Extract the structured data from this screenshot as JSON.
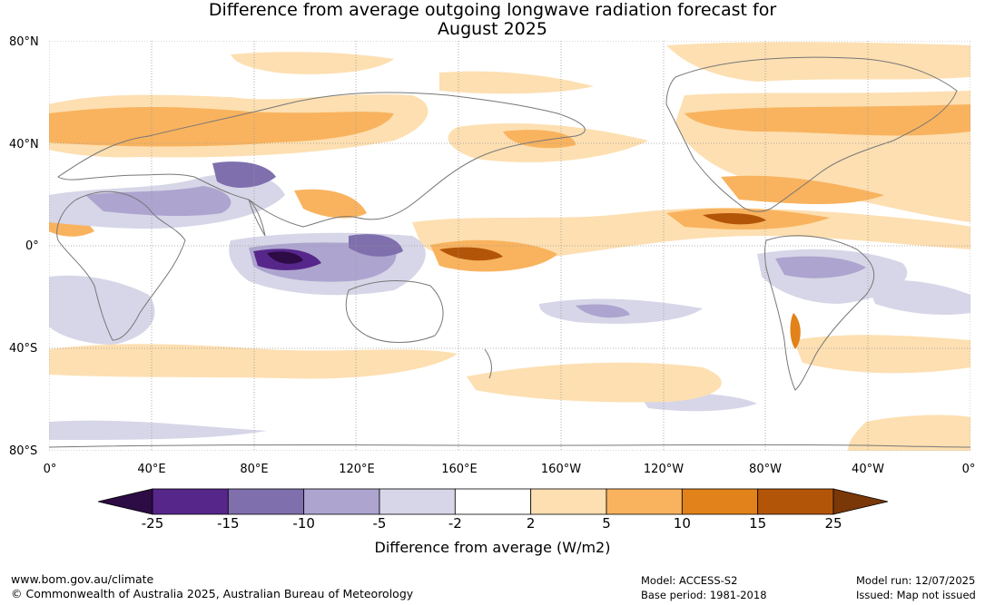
{
  "title": {
    "line1": "Difference from average outgoing longwave radiation forecast for",
    "line2": "August 2025"
  },
  "lat_labels": [
    "80°N",
    "40°N",
    "0°",
    "40°S",
    "80°S"
  ],
  "lon_labels": [
    "0°",
    "40°E",
    "80°E",
    "120°E",
    "160°E",
    "160°W",
    "120°W",
    "80°W",
    "40°W",
    "0°"
  ],
  "colorbar": {
    "ticks": [
      "-25",
      "-15",
      "-10",
      "-5",
      "-2",
      "2",
      "5",
      "10",
      "15",
      "25"
    ],
    "colors": [
      "#2d0b45",
      "#56268a",
      "#7f6fad",
      "#ada4cf",
      "#d6d6e8",
      "#ffffff",
      "#fddfb1",
      "#f9b35e",
      "#e1821a",
      "#b35509",
      "#7a3707"
    ],
    "label": "Difference from average (W/m2)"
  },
  "footer": {
    "url": "www.bom.gov.au/climate",
    "copyright": "© Commonwealth of Australia 2025, Australian Bureau of Meteorology",
    "model": "Model: ACCESS-S2",
    "base_period": "Base period: 1981-2018",
    "model_run": "Model run: 12/07/2025",
    "issued": "Issued: Map not issued"
  }
}
